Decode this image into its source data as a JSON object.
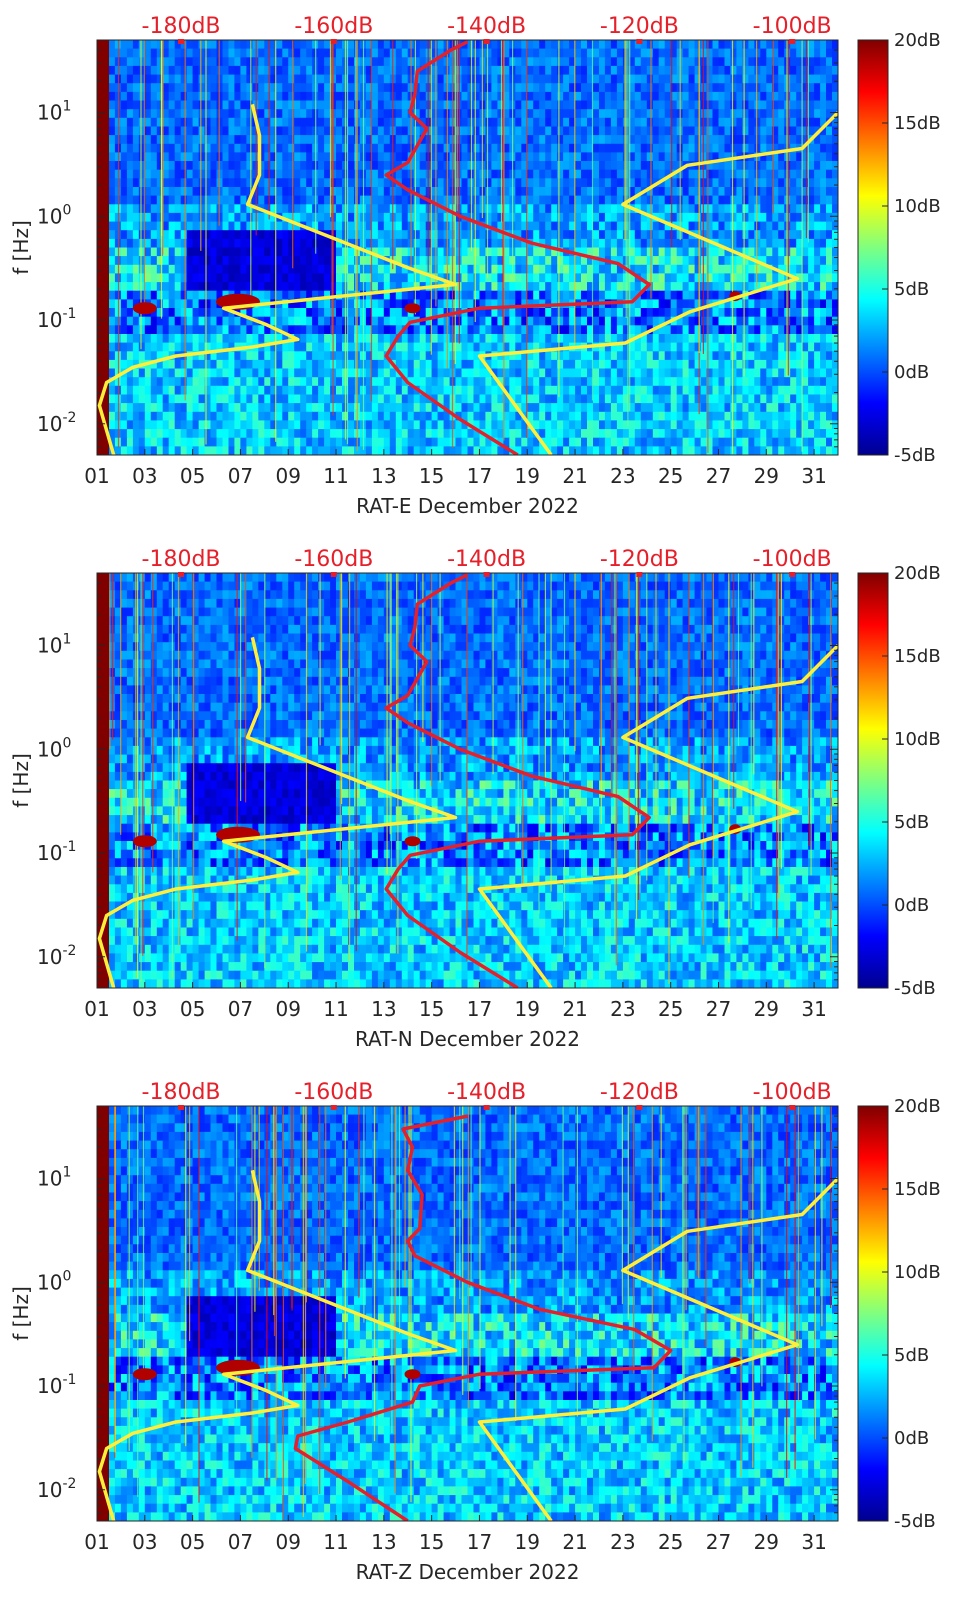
{
  "chart_data": [
    {
      "type": "heatmap",
      "title": "",
      "xlabel": "RAT-E December 2022",
      "ylabel": "f [Hz]",
      "x_tick_labels": [
        "01",
        "03",
        "05",
        "07",
        "09",
        "11",
        "13",
        "15",
        "17",
        "19",
        "21",
        "23",
        "25",
        "27",
        "29",
        "31"
      ],
      "x_ticks": [
        1,
        3,
        5,
        7,
        9,
        11,
        13,
        15,
        17,
        19,
        21,
        23,
        25,
        27,
        29,
        31
      ],
      "xlim": [
        1,
        32
      ],
      "y_tick_labels": [
        "10^-2",
        "10^-1",
        "10^0",
        "10^1"
      ],
      "y_ticks": [
        0.01,
        0.1,
        1,
        10
      ],
      "ylim": [
        0.005,
        50
      ],
      "yscale": "log",
      "top_axis_labels": [
        "-180dB",
        "-160dB",
        "-140dB",
        "-120dB",
        "-100dB"
      ],
      "top_axis_ticks": [
        -180,
        -160,
        -140,
        -120,
        -100
      ],
      "top_axis_range": [
        -191,
        -94
      ],
      "colorbar_labels": [
        "20dB",
        "15dB",
        "10dB",
        "5dB",
        "0dB",
        "-5dB"
      ],
      "colorbar_range": [
        -5,
        20
      ],
      "series": [
        {
          "name": "yellow reference curve (noise model)",
          "color": "#ffef3a",
          "points": [
            [
              1.7,
              0.005
            ],
            [
              1.1,
              0.015
            ],
            [
              1.4,
              0.025
            ],
            [
              2.5,
              0.035
            ],
            [
              4.3,
              0.045
            ],
            [
              7.5,
              0.055
            ],
            [
              9.4,
              0.065
            ],
            [
              8.1,
              0.09
            ],
            [
              6.3,
              0.13
            ],
            [
              16.0,
              0.22
            ],
            [
              14.0,
              0.32
            ],
            [
              7.3,
              1.3
            ],
            [
              7.8,
              2.5
            ],
            [
              7.8,
              6.0
            ],
            [
              7.5,
              12.0
            ]
          ]
        },
        {
          "name": "yellow reference curve (high noise model)",
          "color": "#ffef3a",
          "points": [
            [
              20.0,
              0.005
            ],
            [
              17.0,
              0.045
            ],
            [
              23.1,
              0.06
            ],
            [
              25.8,
              0.12
            ],
            [
              30.3,
              0.25
            ],
            [
              23.0,
              1.3
            ],
            [
              25.7,
              3.1
            ],
            [
              30.5,
              4.5
            ],
            [
              32.0,
              10.0
            ]
          ]
        },
        {
          "name": "red median PSD curve",
          "color": "#e5202a",
          "points": [
            [
              18.6,
              0.005
            ],
            [
              16.2,
              0.011
            ],
            [
              14.0,
              0.025
            ],
            [
              13.1,
              0.045
            ],
            [
              13.6,
              0.07
            ],
            [
              14.1,
              0.095
            ],
            [
              17.0,
              0.13
            ],
            [
              23.4,
              0.15
            ],
            [
              24.1,
              0.22
            ],
            [
              22.8,
              0.35
            ],
            [
              19.2,
              0.55
            ],
            [
              16.2,
              1.0
            ],
            [
              14.0,
              1.8
            ],
            [
              13.1,
              2.5
            ],
            [
              14.0,
              3.3
            ],
            [
              14.8,
              7.0
            ],
            [
              14.1,
              10.0
            ],
            [
              14.3,
              15.0
            ],
            [
              14.4,
              25.0
            ],
            [
              15.8,
              40.0
            ],
            [
              16.5,
              48.0
            ]
          ]
        }
      ]
    },
    {
      "type": "heatmap",
      "title": "",
      "xlabel": "RAT-N December 2022",
      "ylabel": "f [Hz]",
      "x_tick_labels": [
        "01",
        "03",
        "05",
        "07",
        "09",
        "11",
        "13",
        "15",
        "17",
        "19",
        "21",
        "23",
        "25",
        "27",
        "29",
        "31"
      ],
      "x_ticks": [
        1,
        3,
        5,
        7,
        9,
        11,
        13,
        15,
        17,
        19,
        21,
        23,
        25,
        27,
        29,
        31
      ],
      "xlim": [
        1,
        32
      ],
      "y_tick_labels": [
        "10^-2",
        "10^-1",
        "10^0",
        "10^1"
      ],
      "y_ticks": [
        0.01,
        0.1,
        1,
        10
      ],
      "ylim": [
        0.005,
        50
      ],
      "yscale": "log",
      "top_axis_labels": [
        "-180dB",
        "-160dB",
        "-140dB",
        "-120dB",
        "-100dB"
      ],
      "top_axis_ticks": [
        -180,
        -160,
        -140,
        -120,
        -100
      ],
      "top_axis_range": [
        -191,
        -94
      ],
      "colorbar_labels": [
        "20dB",
        "15dB",
        "10dB",
        "5dB",
        "0dB",
        "-5dB"
      ],
      "colorbar_range": [
        -5,
        20
      ],
      "series": [
        {
          "name": "yellow reference curve (noise model)",
          "color": "#ffef3a",
          "points": [
            [
              1.7,
              0.005
            ],
            [
              1.1,
              0.015
            ],
            [
              1.4,
              0.025
            ],
            [
              2.5,
              0.035
            ],
            [
              4.3,
              0.045
            ],
            [
              7.5,
              0.055
            ],
            [
              9.4,
              0.065
            ],
            [
              8.1,
              0.09
            ],
            [
              6.3,
              0.13
            ],
            [
              16.0,
              0.22
            ],
            [
              14.0,
              0.32
            ],
            [
              7.3,
              1.3
            ],
            [
              7.8,
              2.5
            ],
            [
              7.8,
              6.0
            ],
            [
              7.5,
              12.0
            ]
          ]
        },
        {
          "name": "yellow reference curve (high noise model)",
          "color": "#ffef3a",
          "points": [
            [
              20.0,
              0.005
            ],
            [
              17.0,
              0.045
            ],
            [
              23.1,
              0.06
            ],
            [
              25.8,
              0.12
            ],
            [
              30.3,
              0.25
            ],
            [
              23.0,
              1.3
            ],
            [
              25.7,
              3.1
            ],
            [
              30.5,
              4.5
            ],
            [
              32.0,
              10.0
            ]
          ]
        },
        {
          "name": "red median PSD curve",
          "color": "#e5202a",
          "points": [
            [
              18.6,
              0.005
            ],
            [
              16.2,
              0.011
            ],
            [
              14.0,
              0.025
            ],
            [
              13.1,
              0.045
            ],
            [
              13.6,
              0.07
            ],
            [
              14.1,
              0.095
            ],
            [
              17.0,
              0.13
            ],
            [
              23.4,
              0.15
            ],
            [
              24.1,
              0.22
            ],
            [
              22.8,
              0.35
            ],
            [
              19.2,
              0.55
            ],
            [
              16.2,
              1.0
            ],
            [
              14.0,
              1.8
            ],
            [
              13.1,
              2.5
            ],
            [
              14.0,
              3.3
            ],
            [
              14.8,
              7.0
            ],
            [
              14.1,
              10.0
            ],
            [
              14.3,
              15.0
            ],
            [
              14.4,
              25.0
            ],
            [
              15.8,
              40.0
            ],
            [
              16.5,
              48.0
            ]
          ]
        }
      ]
    },
    {
      "type": "heatmap",
      "title": "",
      "xlabel": "RAT-Z December 2022",
      "ylabel": "f [Hz]",
      "x_tick_labels": [
        "01",
        "03",
        "05",
        "07",
        "09",
        "11",
        "13",
        "15",
        "17",
        "19",
        "21",
        "23",
        "25",
        "27",
        "29",
        "31"
      ],
      "x_ticks": [
        1,
        3,
        5,
        7,
        9,
        11,
        13,
        15,
        17,
        19,
        21,
        23,
        25,
        27,
        29,
        31
      ],
      "xlim": [
        1,
        32
      ],
      "y_tick_labels": [
        "10^-2",
        "10^-1",
        "10^0",
        "10^1"
      ],
      "y_ticks": [
        0.01,
        0.1,
        1,
        10
      ],
      "ylim": [
        0.005,
        50
      ],
      "yscale": "log",
      "top_axis_labels": [
        "-180dB",
        "-160dB",
        "-140dB",
        "-120dB",
        "-100dB"
      ],
      "top_axis_ticks": [
        -180,
        -160,
        -140,
        -120,
        -100
      ],
      "top_axis_range": [
        -191,
        -94
      ],
      "colorbar_labels": [
        "20dB",
        "15dB",
        "10dB",
        "5dB",
        "0dB",
        "-5dB"
      ],
      "colorbar_range": [
        -5,
        20
      ],
      "series": [
        {
          "name": "yellow reference curve (noise model)",
          "color": "#ffef3a",
          "points": [
            [
              1.7,
              0.005
            ],
            [
              1.1,
              0.015
            ],
            [
              1.4,
              0.025
            ],
            [
              2.5,
              0.035
            ],
            [
              4.3,
              0.045
            ],
            [
              7.5,
              0.055
            ],
            [
              9.4,
              0.065
            ],
            [
              8.1,
              0.09
            ],
            [
              6.3,
              0.13
            ],
            [
              16.0,
              0.22
            ],
            [
              14.0,
              0.32
            ],
            [
              7.3,
              1.3
            ],
            [
              7.8,
              2.5
            ],
            [
              7.8,
              6.0
            ],
            [
              7.5,
              12.0
            ]
          ]
        },
        {
          "name": "yellow reference curve (high noise model)",
          "color": "#ffef3a",
          "points": [
            [
              20.0,
              0.005
            ],
            [
              17.0,
              0.045
            ],
            [
              23.1,
              0.06
            ],
            [
              25.8,
              0.12
            ],
            [
              30.3,
              0.25
            ],
            [
              23.0,
              1.3
            ],
            [
              25.7,
              3.1
            ],
            [
              30.5,
              4.5
            ],
            [
              32.0,
              10.0
            ]
          ]
        },
        {
          "name": "red median PSD curve",
          "color": "#e5202a",
          "points": [
            [
              14.0,
              0.005
            ],
            [
              11.5,
              0.012
            ],
            [
              9.3,
              0.025
            ],
            [
              9.4,
              0.033
            ],
            [
              11.5,
              0.045
            ],
            [
              14.2,
              0.07
            ],
            [
              14.5,
              0.1
            ],
            [
              17.0,
              0.13
            ],
            [
              24.3,
              0.15
            ],
            [
              25.0,
              0.22
            ],
            [
              23.5,
              0.35
            ],
            [
              19.5,
              0.55
            ],
            [
              16.5,
              1.0
            ],
            [
              14.3,
              1.8
            ],
            [
              14.0,
              2.5
            ],
            [
              14.5,
              3.3
            ],
            [
              14.6,
              7.0
            ],
            [
              14.0,
              12.0
            ],
            [
              14.2,
              20.0
            ],
            [
              13.8,
              30.0
            ],
            [
              16.5,
              40.0
            ]
          ]
        }
      ]
    }
  ]
}
